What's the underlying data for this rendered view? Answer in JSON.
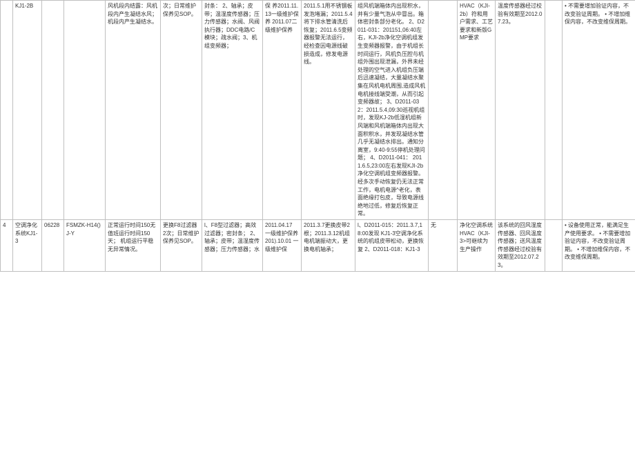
{
  "colors": {
    "border": "#bfbfbf",
    "text": "#333333",
    "background": "#ffffff"
  },
  "fonts": {
    "base_size_pt": 6,
    "line_height": 1.45,
    "family": "Microsoft YaHei / SimSun"
  },
  "rows": [
    {
      "c0": "",
      "c1": "KJ1-2B",
      "c2": "",
      "c3": "",
      "c4": "风机段内结露：风机段内产生凝结水风；机段内产生凝结水。",
      "c5": "次；日常维护保养见SOP。",
      "c6": "封条：\n2、轴承；皮带；温湿度传感器；压力传感器；水阀、风阀执行器；DDC电路/C模块；疏水阀；3、机组变频器；",
      "c7": "保     养2011.11.13一级维护保养 2011.07二级维护保养",
      "c8": "2011.5.1用不锈钢板发泡堵漏；2011.5.4将下排水管清洗后恢复；2011.6.5变频器报警无法运行，经检查因电源线破损造成，修发电源线。",
      "c9": "组风机端箱体内出现积水，并有少量气泡从中冒出。箱体密封条部分老化。\n2、D2011-031：201151,06:40左右，KJI-2b净化空调机组发生变频器报警，由于机组长时间运行，风机负压腔与机组外围出现泄漏，外界未经处理的空气进入机组负压端后迅速凝结，大量凝结水聚集在风机电机周围,造成风机电机接线端受潮，从而引起变频器故；\n3、D2011-032：2011.5.4,09:30巡视机组时，发现KJ-2b低湿机组新风端和风机端箱体内出现大面积积水，并发现凝结水管几乎无凝结水排出。通知分离室，9:40-9:55停机处理问题；\n4、D2011-041：\n\n2011.6.5,23:00左右发现KJI-2b净化空调机组变频器报警。经多次手动恢复仍无法正常工作，电机电源^老化，表面绝缘打包皮，导致电源线绝地过低，修复后恢复正常。",
      "c10": "",
      "c11": "HVAC（KJI-2b）符和用户需求、工艺要求和新版GMP要求",
      "c12": "温度传感器经过校验有效期至2012.07.23。",
      "c13": "",
      "c14": "• 不需要增加验证内容，不改变验证周期。\n• 不增加维保内容，不改变维保周期。"
    },
    {
      "c0": "4",
      "c1": "空调净化系统KJ1-3",
      "c2": "06228",
      "c3": "FSMZK-H14()J-Y",
      "c4": "正常运行时间150无 值班运行时间150天；\n机组运行平稳无异常情况。",
      "c5": "更换F8过滤器2次；日常维护保养见SOP。",
      "c6": "l、F8型过滤器；高效过滤器；密封条；\n2、轴承；皮带；温湿度传感器；压力传感器；水",
      "c7": "2011.04.17 一级维护保养 201).10.01 一级维护保",
      "c8": "2011.3.7更换皮带2根；2011.3.12机组电机端振动大，更换电机轴承；",
      "c9": "l、D2011-015：2011.3.7,18:00发现\n\nKJ1-3空调净化系统的机组皮带松动，更换恢复 2、D2011-018：KJ1-3",
      "c10": "无",
      "c11": "净化空调系统HVAC（KJI-3>可继续为生产操作",
      "c12": "该系统的回风湿度传感器、回风温度传感器；送风温度传感器经过校验有效期至2012.07.23。",
      "c13": "",
      "c14": "• 设备使用正常，能满足生产使用要求。\n• 不需要增加验证内容，不改变验证周期。\n• 不增加维保内容，不改变维保周期。"
    }
  ]
}
